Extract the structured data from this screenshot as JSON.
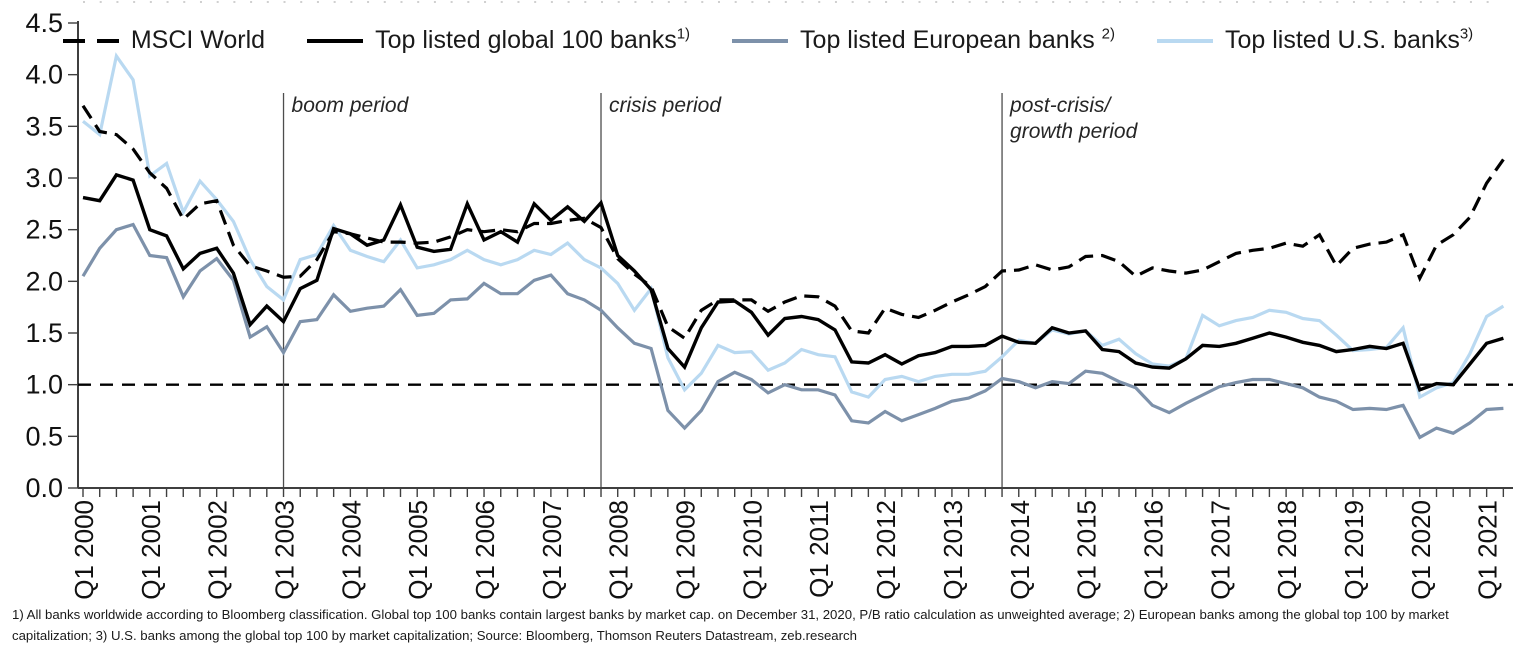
{
  "legend": {
    "items": [
      {
        "label": "MSCI World",
        "sup": "",
        "style": "dashed",
        "color": "#000000"
      },
      {
        "label": "Top listed global 100 banks",
        "sup": "1)",
        "style": "solid",
        "color": "#000000"
      },
      {
        "label": "Top listed European banks ",
        "sup": "2)",
        "style": "solid",
        "color": "#7d91aa"
      },
      {
        "label": "Top listed U.S. banks",
        "sup": "3)",
        "style": "solid",
        "color": "#b9d9f1"
      }
    ]
  },
  "periods": [
    {
      "label_lines": [
        "boom period"
      ],
      "quarter_index": 12
    },
    {
      "label_lines": [
        "crisis period"
      ],
      "quarter_index": 31
    },
    {
      "label_lines": [
        "post-crisis/",
        "growth period"
      ],
      "quarter_index": 55
    }
  ],
  "chart_data": {
    "type": "line",
    "title": "",
    "xlabel": "",
    "ylabel": "",
    "x_unit": "quarters",
    "x_start": "Q1 2000",
    "x_end": "Q2 2021",
    "n_points": 86,
    "ylim": [
      0,
      4.5
    ],
    "y_tick_step": 0.5,
    "y_tick_labels": [
      "0.0",
      "0.5",
      "1.0",
      "1.5",
      "2.0",
      "2.5",
      "3.0",
      "3.5",
      "4.0",
      "4.5"
    ],
    "x_tick_labels": [
      "Q1 2000",
      "Q1 2001",
      "Q1 2002",
      "Q1 2003",
      "Q1 2004",
      "Q1 2005",
      "Q1 2006",
      "Q1 2007",
      "Q1 2008",
      "Q1 2009",
      "Q1 2010",
      "Q1 2011",
      "Q1 2012",
      "Q1 2013",
      "Q1 2014",
      "Q1 2015",
      "Q1 2016",
      "Q1 2017",
      "Q1 2018",
      "Q1 2019",
      "Q1 2020",
      "Q1 2021"
    ],
    "reference_line_y": 1.0,
    "grid": false,
    "legend_position": "top",
    "series": [
      {
        "name": "MSCI World",
        "style": "dashed",
        "color": "#000000",
        "values": [
          3.7,
          3.45,
          3.42,
          3.28,
          3.05,
          2.9,
          2.6,
          2.75,
          2.78,
          2.35,
          2.15,
          2.1,
          2.04,
          2.05,
          2.21,
          2.48,
          2.46,
          2.42,
          2.38,
          2.38,
          2.37,
          2.38,
          2.43,
          2.5,
          2.48,
          2.5,
          2.48,
          2.56,
          2.56,
          2.59,
          2.61,
          2.52,
          2.22,
          2.07,
          1.95,
          1.56,
          1.45,
          1.72,
          1.82,
          1.82,
          1.82,
          1.71,
          1.8,
          1.86,
          1.85,
          1.76,
          1.52,
          1.5,
          1.74,
          1.68,
          1.65,
          1.72,
          1.8,
          1.87,
          1.95,
          2.1,
          2.11,
          2.16,
          2.11,
          2.14,
          2.24,
          2.25,
          2.19,
          2.05,
          2.13,
          2.1,
          2.08,
          2.11,
          2.19,
          2.27,
          2.3,
          2.32,
          2.37,
          2.34,
          2.45,
          2.15,
          2.32,
          2.36,
          2.38,
          2.45,
          2.03,
          2.35,
          2.45,
          2.62,
          2.95,
          3.18
        ]
      },
      {
        "name": "Top listed global 100 banks",
        "style": "solid",
        "color": "#000000",
        "values": [
          2.81,
          2.78,
          3.03,
          2.98,
          2.5,
          2.44,
          2.12,
          2.27,
          2.32,
          2.08,
          1.58,
          1.76,
          1.61,
          1.93,
          2.01,
          2.51,
          2.46,
          2.35,
          2.4,
          2.74,
          2.33,
          2.29,
          2.31,
          2.75,
          2.4,
          2.48,
          2.38,
          2.75,
          2.59,
          2.72,
          2.58,
          2.76,
          2.25,
          2.1,
          1.92,
          1.35,
          1.17,
          1.55,
          1.8,
          1.81,
          1.7,
          1.48,
          1.64,
          1.66,
          1.63,
          1.53,
          1.22,
          1.21,
          1.29,
          1.2,
          1.28,
          1.31,
          1.37,
          1.37,
          1.38,
          1.47,
          1.41,
          1.4,
          1.55,
          1.5,
          1.52,
          1.34,
          1.32,
          1.21,
          1.17,
          1.16,
          1.25,
          1.38,
          1.37,
          1.4,
          1.45,
          1.5,
          1.46,
          1.41,
          1.38,
          1.32,
          1.34,
          1.37,
          1.35,
          1.4,
          0.95,
          1.01,
          1.0,
          1.2,
          1.4,
          1.45
        ]
      },
      {
        "name": "Top listed European banks",
        "style": "solid",
        "color": "#7d91aa",
        "values": [
          2.05,
          2.32,
          2.5,
          2.55,
          2.25,
          2.23,
          1.85,
          2.1,
          2.22,
          2.01,
          1.46,
          1.56,
          1.31,
          1.61,
          1.63,
          1.87,
          1.71,
          1.74,
          1.76,
          1.92,
          1.67,
          1.69,
          1.82,
          1.83,
          1.98,
          1.88,
          1.88,
          2.01,
          2.06,
          1.88,
          1.82,
          1.72,
          1.55,
          1.4,
          1.35,
          0.75,
          0.58,
          0.75,
          1.03,
          1.12,
          1.05,
          0.92,
          1.0,
          0.95,
          0.95,
          0.9,
          0.65,
          0.63,
          0.74,
          0.65,
          0.71,
          0.77,
          0.84,
          0.87,
          0.94,
          1.06,
          1.03,
          0.97,
          1.03,
          1.01,
          1.13,
          1.11,
          1.03,
          0.97,
          0.8,
          0.73,
          0.82,
          0.9,
          0.98,
          1.02,
          1.05,
          1.05,
          1.01,
          0.97,
          0.88,
          0.84,
          0.76,
          0.77,
          0.76,
          0.8,
          0.49,
          0.58,
          0.53,
          0.63,
          0.76,
          0.77
        ]
      },
      {
        "name": "Top listed U.S. banks",
        "style": "solid",
        "color": "#b9d9f1",
        "values": [
          3.55,
          3.42,
          4.18,
          3.95,
          3.02,
          3.14,
          2.67,
          2.97,
          2.79,
          2.58,
          2.21,
          1.95,
          1.82,
          2.21,
          2.26,
          2.54,
          2.3,
          2.24,
          2.19,
          2.4,
          2.13,
          2.16,
          2.21,
          2.3,
          2.21,
          2.16,
          2.21,
          2.3,
          2.26,
          2.37,
          2.21,
          2.13,
          1.98,
          1.72,
          1.93,
          1.26,
          0.95,
          1.11,
          1.38,
          1.31,
          1.32,
          1.14,
          1.21,
          1.34,
          1.29,
          1.27,
          0.93,
          0.88,
          1.05,
          1.08,
          1.03,
          1.08,
          1.1,
          1.1,
          1.13,
          1.27,
          1.43,
          1.4,
          1.53,
          1.49,
          1.52,
          1.38,
          1.44,
          1.3,
          1.2,
          1.18,
          1.25,
          1.67,
          1.57,
          1.62,
          1.65,
          1.72,
          1.7,
          1.64,
          1.62,
          1.48,
          1.33,
          1.34,
          1.36,
          1.55,
          0.88,
          0.97,
          1.02,
          1.3,
          1.66,
          1.76
        ]
      }
    ]
  },
  "footnote_lines": [
    "1) All banks worldwide according to Bloomberg classification. Global top 100 banks contain largest banks by market cap. on December 31, 2020, P/B ratio calculation as unweighted average; 2) European banks among the global top 100 by market",
    "capitalization; 3) U.S. banks among the global top 100 by market capitalization; Source: Bloomberg, Thomson Reuters Datastream, zeb.research"
  ]
}
